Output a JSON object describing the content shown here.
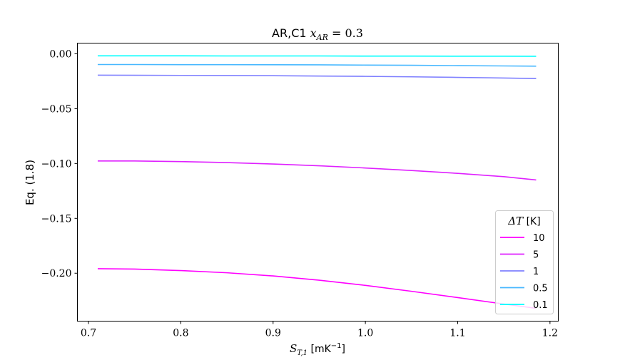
{
  "chart_data": {
    "type": "line",
    "title": "AR,C1 x_AR = 0.3",
    "title_parts": {
      "prefix": "AR,C1 ",
      "var": "x",
      "sub": "AR",
      "rest": " = 0.3"
    },
    "xlabel": "S_T,1 [mK⁻¹]",
    "xlabel_parts": {
      "var": "S",
      "sub": "T,1",
      "rest": " [mK",
      "sup": "−1",
      "close": "]"
    },
    "ylabel": "Eq. (1.8)",
    "xlim": [
      0.688,
      1.209
    ],
    "ylim": [
      -0.2437,
      0.0097
    ],
    "xticks": [
      0.7,
      0.8,
      0.9,
      1.0,
      1.1,
      1.2
    ],
    "xtick_labels": [
      "0.7",
      "0.8",
      "0.9",
      "1.0",
      "1.1",
      "1.2"
    ],
    "yticks": [
      0.0,
      -0.05,
      -0.1,
      -0.15,
      -0.2
    ],
    "ytick_labels": [
      "0.00",
      "−0.05",
      "−0.10",
      "−0.15",
      "−0.20"
    ],
    "grid": false,
    "legend": {
      "title": "ΔT [K]",
      "title_var": "ΔT",
      "title_unit": " [K]",
      "placement": "lower-right"
    },
    "x": [
      0.71,
      0.75,
      0.8,
      0.85,
      0.9,
      0.95,
      1.0,
      1.05,
      1.1,
      1.15,
      1.185
    ],
    "series": [
      {
        "name": "10",
        "color": "#ff00ff",
        "values": [
          -0.1959,
          -0.1962,
          -0.1976,
          -0.1996,
          -0.2025,
          -0.2064,
          -0.2111,
          -0.2165,
          -0.2222,
          -0.2281,
          -0.232
        ]
      },
      {
        "name": "5",
        "color": "#df20ff",
        "values": [
          -0.0977,
          -0.0977,
          -0.0983,
          -0.0992,
          -0.1005,
          -0.1021,
          -0.1041,
          -0.1064,
          -0.109,
          -0.112,
          -0.115
        ]
      },
      {
        "name": "1",
        "color": "#7f80ff",
        "values": [
          -0.0195,
          -0.0196,
          -0.0197,
          -0.0198,
          -0.02,
          -0.0203,
          -0.0206,
          -0.021,
          -0.0215,
          -0.0221,
          -0.0226
        ]
      },
      {
        "name": "0.5",
        "color": "#48b8ff",
        "values": [
          -0.0098,
          -0.0098,
          -0.0099,
          -0.0099,
          -0.01,
          -0.0101,
          -0.0103,
          -0.0105,
          -0.0108,
          -0.0111,
          -0.0113
        ]
      },
      {
        "name": "0.1",
        "color": "#00ffff",
        "values": [
          -0.0019,
          -0.0019,
          -0.0019,
          -0.002,
          -0.002,
          -0.002,
          -0.0021,
          -0.0021,
          -0.0022,
          -0.0022,
          -0.0023
        ]
      }
    ]
  }
}
